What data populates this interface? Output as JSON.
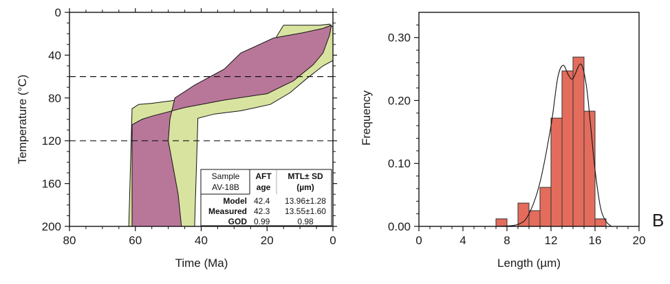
{
  "panel_label": "B",
  "chart_data": [
    {
      "type": "area",
      "xlabel": "Time (Ma)",
      "ylabel": "Temperature (°C)",
      "xlim": [
        80,
        0
      ],
      "ylim": [
        200,
        0
      ],
      "x_ticks": [
        "80",
        "60",
        "40",
        "20",
        "0"
      ],
      "y_ticks": [
        "0",
        "40",
        "80",
        "120",
        "160",
        "200"
      ],
      "grid": false,
      "reference_lines_temperature": [
        60,
        120
      ],
      "colors": {
        "acceptable_envelope": "#d8e3a0",
        "good_envelope": "#b87799",
        "line": "#111111"
      },
      "series": [
        {
          "outer": [
            [
              62,
              200
            ],
            [
              61,
              90
            ],
            [
              59,
              86
            ],
            [
              55,
              85
            ],
            [
              45,
              81
            ],
            [
              35,
              77
            ],
            [
              28,
              72
            ],
            [
              25,
              66
            ],
            [
              22,
              55
            ],
            [
              19,
              39
            ],
            [
              17,
              22
            ],
            [
              15,
              12
            ],
            [
              4,
              12
            ],
            [
              1,
              11
            ],
            [
              0,
              14
            ],
            [
              0,
              45
            ],
            [
              3,
              50
            ],
            [
              8,
              62
            ],
            [
              13,
              75
            ],
            [
              19,
              86
            ],
            [
              28,
              92
            ],
            [
              36,
              95
            ],
            [
              41,
              99
            ],
            [
              42,
              200
            ]
          ],
          "inner": [
            [
              61,
              200
            ],
            [
              61,
              105
            ],
            [
              58,
              100
            ],
            [
              55,
              97
            ],
            [
              45,
              89
            ],
            [
              33,
              82
            ],
            [
              20,
              76
            ],
            [
              12,
              64
            ],
            [
              6,
              49
            ],
            [
              3,
              38
            ],
            [
              1,
              21
            ],
            [
              0.5,
              12
            ],
            [
              3,
              15
            ],
            [
              9,
              19
            ],
            [
              18,
              24
            ],
            [
              28,
              38
            ],
            [
              33,
              53
            ],
            [
              42,
              68
            ],
            [
              48,
              80
            ],
            [
              49.5,
              100
            ],
            [
              50,
              120
            ],
            [
              47,
              170
            ],
            [
              46,
              200
            ]
          ]
        }
      ],
      "table": {
        "headers": [
          "Sample\nAV-18B",
          "AFT\nage",
          "MTL± SD\n(µm)"
        ],
        "rows": [
          [
            "Model",
            "42.4",
            "13.96±1.28"
          ],
          [
            "Measured",
            "42.3",
            "13.55±1.60"
          ],
          [
            "GOD",
            "0.99",
            "0.98"
          ]
        ]
      }
    },
    {
      "type": "bar",
      "xlabel": "Length (µm)",
      "ylabel": "Frequency",
      "xlim": [
        0,
        20
      ],
      "ylim": [
        0,
        0.34
      ],
      "x_ticks": [
        "0",
        "4",
        "8",
        "12",
        "16",
        "20"
      ],
      "y_ticks": [
        "0.00",
        "0.10",
        "0.20",
        "0.30"
      ],
      "grid": false,
      "bin_width": 1,
      "bins": [
        7,
        8,
        9,
        10,
        11,
        12,
        13,
        14,
        15,
        16
      ],
      "values": [
        0.012,
        0,
        0.037,
        0.025,
        0.062,
        0.172,
        0.247,
        0.269,
        0.183,
        0.012
      ],
      "fit_curve": [
        [
          7,
          0
        ],
        [
          9,
          0.003
        ],
        [
          10,
          0.02
        ],
        [
          11,
          0.07
        ],
        [
          12,
          0.16
        ],
        [
          12.6,
          0.235
        ],
        [
          13.1,
          0.256
        ],
        [
          13.6,
          0.24
        ],
        [
          14.0,
          0.235
        ],
        [
          14.7,
          0.258
        ],
        [
          15.2,
          0.225
        ],
        [
          15.6,
          0.16
        ],
        [
          16.0,
          0.09
        ],
        [
          16.5,
          0.03
        ],
        [
          17,
          0.008
        ],
        [
          17.5,
          0
        ]
      ],
      "colors": {
        "bar": "#e36c5c",
        "bar_edge": "#333333"
      }
    }
  ]
}
